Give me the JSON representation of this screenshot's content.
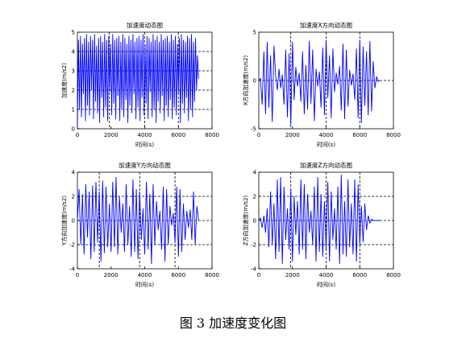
{
  "caption": "图 3  加速度变化图",
  "chart_data": [
    {
      "type": "line",
      "title": "加速度动态图",
      "xlabel": "时间(s)",
      "ylabel": "加速度(m/s2)",
      "xlim": [
        0,
        8000
      ],
      "ylim": [
        0,
        5
      ],
      "xticks": [
        0,
        2000,
        4000,
        6000,
        8000
      ],
      "yticks": [
        0,
        1,
        2,
        3,
        4,
        5
      ],
      "xref": [
        1900,
        4000,
        6000
      ],
      "yref": [
        1,
        2,
        3,
        4
      ],
      "color": "#0000ff",
      "series": [
        {
          "x": [
            0,
            60,
            120,
            180,
            240,
            300,
            360,
            420,
            480,
            540,
            600,
            660,
            720,
            780,
            840,
            900,
            960,
            1020,
            1080,
            1140,
            1200,
            1260,
            1320,
            1380,
            1440,
            1500,
            1560,
            1620,
            1680,
            1740,
            1800,
            1860,
            1920,
            1980,
            2040,
            2100,
            2160,
            2220,
            2280,
            2340,
            2400,
            2460,
            2520,
            2580,
            2640,
            2700,
            2760,
            2820,
            2880,
            2940,
            3000,
            3060,
            3120,
            3180,
            3240,
            3300,
            3360,
            3420,
            3480,
            3540,
            3600,
            3660,
            3720,
            3780,
            3840,
            3900,
            3960,
            4020,
            4080,
            4140,
            4200,
            4260,
            4320,
            4380,
            4440,
            4500,
            4560,
            4620,
            4680,
            4740,
            4800,
            4860,
            4920,
            4980,
            5040,
            5100,
            5160,
            5220,
            5280,
            5340,
            5400,
            5460,
            5520,
            5580,
            5640,
            5700,
            5760,
            5820,
            5880,
            5940,
            6000,
            6060,
            6120,
            6180,
            6240,
            6300,
            6360,
            6420,
            6480,
            6540,
            6600,
            6660,
            6720,
            6780,
            6840,
            6900,
            6960,
            7020,
            7080,
            7140,
            7200
          ],
          "y": [
            0.1,
            4.6,
            1.0,
            4.8,
            0.6,
            4.4,
            1.8,
            4.7,
            0.4,
            4.9,
            1.2,
            4.5,
            0.7,
            4.8,
            2.0,
            4.6,
            0.5,
            4.9,
            1.4,
            4.3,
            0.8,
            4.7,
            0.3,
            4.8,
            1.6,
            4.5,
            0.6,
            4.9,
            1.1,
            4.6,
            0.4,
            4.8,
            1.9,
            4.4,
            0.7,
            4.9,
            1.3,
            4.6,
            0.5,
            4.7,
            1.7,
            4.8,
            0.4,
            4.5,
            1.0,
            4.9,
            0.6,
            4.7,
            1.5,
            4.4,
            0.3,
            4.8,
            1.2,
            4.6,
            0.8,
            4.9,
            1.8,
            4.5,
            0.5,
            4.7,
            1.1,
            4.8,
            0.4,
            4.6,
            1.6,
            4.9,
            0.7,
            4.4,
            1.3,
            4.8,
            0.5,
            4.7,
            1.9,
            4.5,
            0.6,
            4.9,
            1.0,
            4.6,
            0.3,
            4.8,
            1.4,
            4.5,
            0.8,
            4.9,
            1.7,
            4.6,
            0.4,
            4.7,
            1.2,
            4.8,
            0.6,
            4.5,
            1.5,
            4.9,
            0.5,
            4.6,
            1.1,
            4.8,
            0.7,
            4.4,
            1.8,
            4.7,
            0.3,
            4.9,
            1.3,
            4.6,
            0.8,
            4.5,
            1.6,
            4.8,
            0.4,
            4.7,
            1.0,
            4.9,
            0.6,
            4.5,
            1.4,
            4.7,
            2.0,
            3.8,
            2.6
          ]
        }
      ]
    },
    {
      "type": "line",
      "title": "加速度X方向动态图",
      "xlabel": "时间(s)",
      "ylabel": "X方向加速度(m/s2)",
      "xlim": [
        0,
        8000
      ],
      "ylim": [
        -5,
        5
      ],
      "xticks": [
        0,
        2000,
        4000,
        6000,
        8000
      ],
      "yticks": [
        -5,
        0,
        5
      ],
      "xref": [
        1900,
        4000,
        6000
      ],
      "yref": [
        0
      ],
      "color": "#0000ff",
      "series": [
        {
          "x": [
            0,
            100,
            200,
            300,
            400,
            500,
            600,
            700,
            800,
            900,
            1000,
            1100,
            1200,
            1300,
            1400,
            1500,
            1600,
            1700,
            1800,
            1900,
            2000,
            2100,
            2200,
            2300,
            2400,
            2500,
            2600,
            2700,
            2800,
            2900,
            3000,
            3100,
            3200,
            3300,
            3400,
            3500,
            3600,
            3700,
            3800,
            3900,
            4000,
            4100,
            4200,
            4300,
            4400,
            4500,
            4600,
            4700,
            4800,
            4900,
            5000,
            5100,
            5200,
            5300,
            5400,
            5500,
            5600,
            5700,
            5800,
            5900,
            6000,
            6100,
            6200,
            6300,
            6400,
            6500,
            6600,
            6700,
            6800,
            6900,
            7000,
            7100,
            7200
          ],
          "y": [
            0,
            0.2,
            -2.5,
            3.0,
            -3.5,
            4.0,
            -2.8,
            2.6,
            -4.3,
            3.6,
            0.5,
            -1.0,
            1.2,
            -0.8,
            0.6,
            -2.5,
            3.2,
            -3.8,
            2.8,
            -4.6,
            4.0,
            -2.0,
            1.4,
            -0.6,
            0.8,
            -2.2,
            3.0,
            -3.5,
            1.6,
            -3.0,
            4.1,
            -2.4,
            3.2,
            -4.2,
            1.2,
            -0.6,
            0.9,
            -2.8,
            3.4,
            -3.6,
            4.2,
            -1.8,
            2.6,
            -3.9,
            3.3,
            -1.2,
            0.8,
            -0.4,
            1.5,
            -3.1,
            3.8,
            -4.0,
            3.2,
            -2.7,
            1.1,
            -0.5,
            0.7,
            -2.0,
            3.3,
            -3.9,
            4.2,
            -4.4,
            3.5,
            -2.6,
            3.0,
            -3.6,
            4.1,
            -3.2,
            2.0,
            -0.8,
            0.4,
            -0.1,
            0.0
          ]
        }
      ]
    },
    {
      "type": "line",
      "title": "加速度Y方向动态图",
      "xlabel": "时间(s)",
      "ylabel": "Y方向加速度(m/s2)",
      "xlim": [
        0,
        8000
      ],
      "ylim": [
        -4,
        4
      ],
      "xticks": [
        0,
        2000,
        4000,
        6000,
        8000
      ],
      "yticks": [
        -4,
        -2,
        0,
        2,
        4
      ],
      "xref": [
        1300,
        3700,
        5800
      ],
      "yref": [
        -2,
        0,
        2
      ],
      "color": "#0000ff",
      "series": [
        {
          "x": [
            0,
            100,
            200,
            300,
            400,
            500,
            600,
            700,
            800,
            900,
            1000,
            1100,
            1200,
            1300,
            1400,
            1500,
            1600,
            1700,
            1800,
            1900,
            2000,
            2100,
            2200,
            2300,
            2400,
            2500,
            2600,
            2700,
            2800,
            2900,
            3000,
            3100,
            3200,
            3300,
            3400,
            3500,
            3600,
            3700,
            3800,
            3900,
            4000,
            4100,
            4200,
            4300,
            4400,
            4500,
            4600,
            4700,
            4800,
            4900,
            5000,
            5100,
            5200,
            5300,
            5400,
            5500,
            5600,
            5700,
            5800,
            5900,
            6000,
            6100,
            6200,
            6300,
            6400,
            6500,
            6600,
            6700,
            6800,
            6900,
            7000,
            7100,
            7200
          ],
          "y": [
            0,
            2.6,
            -2.0,
            2.2,
            -2.8,
            3.0,
            -1.4,
            2.4,
            -3.2,
            2.9,
            -2.6,
            3.2,
            -1.8,
            2.4,
            -3.4,
            3.3,
            -2.7,
            2.8,
            -2.2,
            1.4,
            -2.6,
            3.2,
            -2.2,
            3.6,
            -2.8,
            2.0,
            -1.0,
            1.4,
            -2.6,
            3.0,
            -2.0,
            1.2,
            -3.0,
            3.4,
            -2.6,
            2.6,
            -3.2,
            2.4,
            -1.6,
            1.0,
            -2.8,
            3.2,
            -2.4,
            2.2,
            -3.6,
            3.0,
            -2.0,
            1.6,
            -0.8,
            0.8,
            -2.4,
            2.8,
            -3.4,
            2.6,
            -2.0,
            1.2,
            -0.4,
            0.6,
            -1.8,
            2.8,
            -3.0,
            2.6,
            -2.6,
            1.4,
            -1.6,
            0.8,
            -0.6,
            0.9,
            -1.6,
            2.4,
            -2.0,
            1.2,
            0.0
          ]
        }
      ]
    },
    {
      "type": "line",
      "title": "加速度Z方向动态图",
      "xlabel": "时间(s)",
      "ylabel": "Z方向加速度(m/s2)",
      "xlim": [
        0,
        8000
      ],
      "ylim": [
        -4,
        4
      ],
      "xticks": [
        0,
        2000,
        4000,
        6000,
        8000
      ],
      "yticks": [
        -4,
        -2,
        0,
        2,
        4
      ],
      "xref": [
        1900,
        4000,
        6000
      ],
      "yref": [
        -2,
        0,
        2
      ],
      "color": "#0000ff",
      "series": [
        {
          "x": [
            0,
            100,
            200,
            300,
            400,
            500,
            600,
            700,
            800,
            900,
            1000,
            1100,
            1200,
            1300,
            1400,
            1500,
            1600,
            1700,
            1800,
            1900,
            2000,
            2100,
            2200,
            2300,
            2400,
            2500,
            2600,
            2700,
            2800,
            2900,
            3000,
            3100,
            3200,
            3300,
            3400,
            3500,
            3600,
            3700,
            3800,
            3900,
            4000,
            4100,
            4200,
            4300,
            4400,
            4500,
            4600,
            4700,
            4800,
            4900,
            5000,
            5100,
            5200,
            5300,
            5400,
            5500,
            5600,
            5700,
            5800,
            5900,
            6000,
            6100,
            6200,
            6300,
            6400,
            6500,
            6600,
            6700,
            6800,
            6900,
            7000,
            7100,
            7200
          ],
          "y": [
            0,
            0.2,
            -0.6,
            0.4,
            -1.0,
            1.0,
            -2.2,
            2.4,
            -2.0,
            1.4,
            -3.2,
            3.4,
            -2.6,
            3.6,
            -3.6,
            2.8,
            -1.6,
            1.0,
            -2.4,
            2.6,
            -3.4,
            2.0,
            -1.2,
            1.6,
            -2.8,
            3.4,
            -2.4,
            3.0,
            -3.2,
            2.2,
            -1.0,
            0.8,
            -2.0,
            2.8,
            -3.4,
            3.6,
            -2.6,
            2.2,
            -3.0,
            1.6,
            -2.4,
            3.2,
            -3.4,
            2.4,
            -1.6,
            1.0,
            -2.4,
            2.8,
            -3.6,
            3.8,
            -2.8,
            1.6,
            -3.0,
            3.4,
            -2.2,
            1.4,
            -2.8,
            3.4,
            -3.4,
            3.0,
            -2.0,
            1.2,
            -1.8,
            1.4,
            -0.8,
            0.4,
            -0.2,
            0.1,
            0.0,
            0.0,
            0.0,
            0.0,
            0.0
          ]
        }
      ]
    }
  ]
}
